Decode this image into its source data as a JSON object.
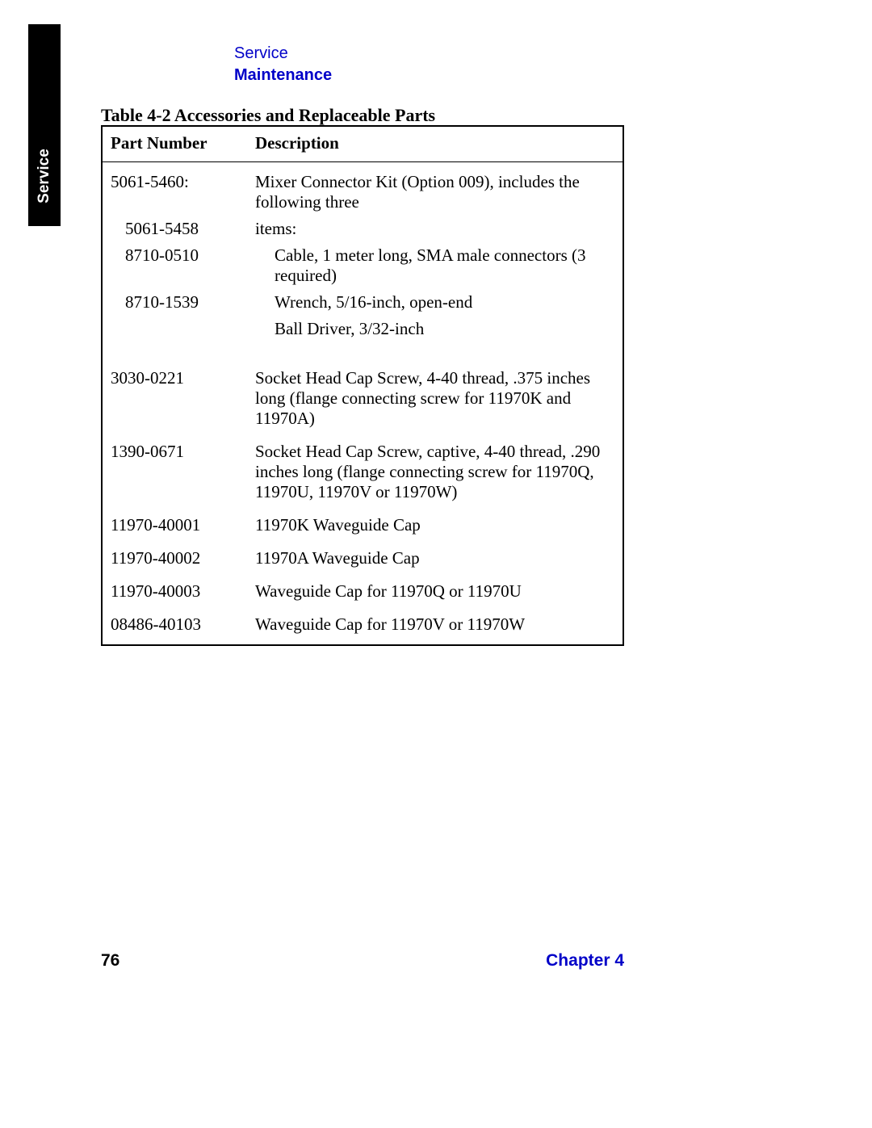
{
  "sidebar": {
    "tab_label": "Service"
  },
  "header": {
    "category": "Service",
    "section": "Maintenance"
  },
  "table": {
    "caption": "Table 4-2  Accessories and Replaceable Parts",
    "columns": {
      "part": "Part Number",
      "desc": "Description"
    },
    "kit": {
      "part": "5061-5460:",
      "desc_line1": "Mixer Connector Kit (Option 009), includes the following three",
      "desc_line2": "items:",
      "sub1_part": "5061-5458",
      "sub1_desc": "Cable, 1 meter long, SMA male connectors (3 required)",
      "sub2_part": "8710-0510",
      "sub2_desc": "Wrench, 5/16-inch, open-end",
      "sub3_part": "8710-1539",
      "sub3_desc": "Ball Driver, 3/32-inch"
    },
    "rows": [
      {
        "part": "3030-0221",
        "desc": "Socket Head Cap Screw, 4-40 thread, .375 inches long (flange connecting screw for 11970K and 11970A)"
      },
      {
        "part": "1390-0671",
        "desc": "Socket Head Cap Screw, captive, 4-40 thread, .290 inches long (flange connecting screw for 11970Q, 11970U, 11970V or 11970W)"
      },
      {
        "part": "11970-40001",
        "desc": "11970K Waveguide Cap"
      },
      {
        "part": "11970-40002",
        "desc": "11970A Waveguide Cap"
      },
      {
        "part": "11970-40003",
        "desc": " Waveguide Cap for 11970Q or 11970U"
      },
      {
        "part": "08486-40103",
        "desc": " Waveguide Cap for 11970V or 11970W"
      }
    ]
  },
  "footer": {
    "page": "76",
    "chapter": "Chapter 4"
  }
}
